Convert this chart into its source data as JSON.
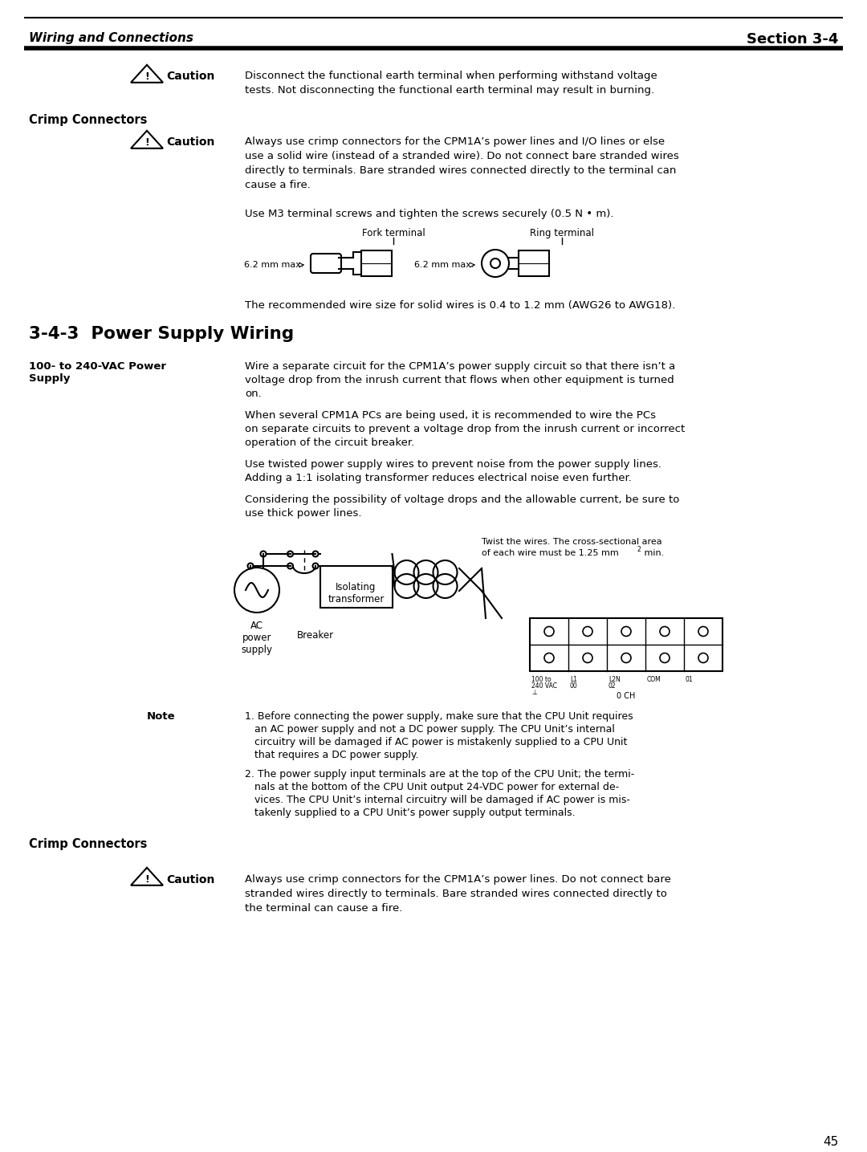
{
  "page_bg": "#ffffff",
  "header_left": "Wiring and Connections",
  "header_right": "Section 3-4",
  "page_number": "45",
  "section_heading": "3-4-3  Power Supply Wiring",
  "caution1_text": "Disconnect the functional earth terminal when performing withstand voltage\ntests. Not disconnecting the functional earth terminal may result in burning.",
  "crimp_h1": "Crimp Connectors",
  "caution2_text": "Always use crimp connectors for the CPM1A’s power lines and I/O lines or else\nuse a solid wire (instead of a stranded wire). Do not connect bare stranded wires\ndirectly to terminals. Bare stranded wires connected directly to the terminal can\ncause a fire.",
  "m3_text": "Use M3 terminal screws and tighten the screws securely (0.5 N • m).",
  "fork_label": "Fork terminal",
  "ring_label": "Ring terminal",
  "fork_dim": "6.2 mm max.",
  "ring_dim": "6.2 mm max.",
  "wire_size": "The recommended wire size for solid wires is 0.4 to 1.2 mm (AWG26 to AWG18).",
  "ps_label": "100- to 240-VAC Power\nSupply",
  "para1": "Wire a separate circuit for the CPM1A’s power supply circuit so that there isn’t a\nvoltage drop from the inrush current that flows when other equipment is turned\non.",
  "para2": "When several CPM1A PCs are being used, it is recommended to wire the PCs\non separate circuits to prevent a voltage drop from the inrush current or incorrect\noperation of the circuit breaker.",
  "para3": "Use twisted power supply wires to prevent noise from the power supply lines.\nAdding a 1:1 isolating transformer reduces electrical noise even further.",
  "para4": "Considering the possibility of voltage drops and the allowable current, be sure to\nuse thick power lines.",
  "twist_note1": "Twist the wires. The cross-sectional area",
  "twist_note2": "of each wire must be 1.25 mm",
  "twist_super": "2",
  "twist_note3": " min.",
  "ac_label": "AC\npower\nsupply",
  "breaker_label": "Breaker",
  "iso_label": "Isolating\ntransformer",
  "note_label": "Note",
  "note1_lines": [
    "1. Before connecting the power supply, make sure that the CPU Unit requires",
    "   an AC power supply and not a DC power supply. The CPU Unit’s internal",
    "   circuitry will be damaged if AC power is mistakenly supplied to a CPU Unit",
    "   that requires a DC power supply."
  ],
  "note2_lines": [
    "2. The power supply input terminals are at the top of the CPU Unit; the termi-",
    "   nals at the bottom of the CPU Unit output 24-VDC power for external de-",
    "   vices. The CPU Unit’s internal circuitry will be damaged if AC power is mis-",
    "   takenly supplied to a CPU Unit’s power supply output terminals."
  ],
  "crimp_h2": "Crimp Connectors",
  "caution3_text": "Always use crimp connectors for the CPM1A’s power lines. Do not connect bare\nstranded wires directly to terminals. Bare stranded wires connected directly to\nthe terminal can cause a fire."
}
